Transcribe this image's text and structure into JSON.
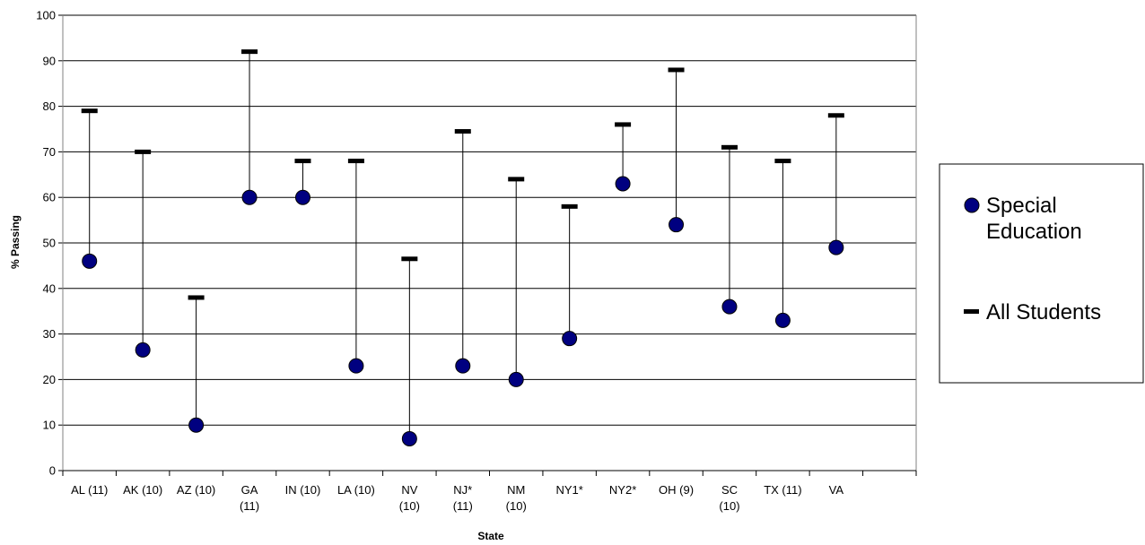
{
  "chart_data": {
    "type": "scatter",
    "title": "",
    "xlabel": "State",
    "ylabel": "% Passing",
    "ylim": [
      0,
      100
    ],
    "yticks": [
      0,
      10,
      20,
      30,
      40,
      50,
      60,
      70,
      80,
      90,
      100
    ],
    "grid": true,
    "legend_position": "right",
    "categories": [
      [
        "AL (11)"
      ],
      [
        "AK (10)"
      ],
      [
        "AZ (10)"
      ],
      [
        "GA",
        "(11)"
      ],
      [
        "IN (10)"
      ],
      [
        "LA (10)"
      ],
      [
        "NV",
        "(10)"
      ],
      [
        "NJ*",
        "(11)"
      ],
      [
        "NM",
        "(10)"
      ],
      [
        "NY1*"
      ],
      [
        "NY2*"
      ],
      [
        "OH (9)"
      ],
      [
        "SC",
        "(10)"
      ],
      [
        "TX (11)"
      ],
      [
        "VA"
      ]
    ],
    "series": [
      {
        "name": "Special Education",
        "marker": "circle",
        "color": "#000080",
        "values": [
          46,
          26.5,
          10,
          60,
          60,
          23,
          7,
          23,
          20,
          29,
          63,
          54,
          36,
          33,
          49
        ]
      },
      {
        "name": "All Students",
        "marker": "dash",
        "color": "#000000",
        "values": [
          79,
          70,
          38,
          92,
          68,
          68,
          46.5,
          74.5,
          64,
          58,
          76,
          88,
          71,
          68,
          78
        ]
      }
    ],
    "legend": {
      "items": [
        {
          "label_lines": [
            "Special",
            "Education"
          ],
          "marker": "circle"
        },
        {
          "label_lines": [
            "All Students"
          ],
          "marker": "dash"
        }
      ]
    }
  }
}
